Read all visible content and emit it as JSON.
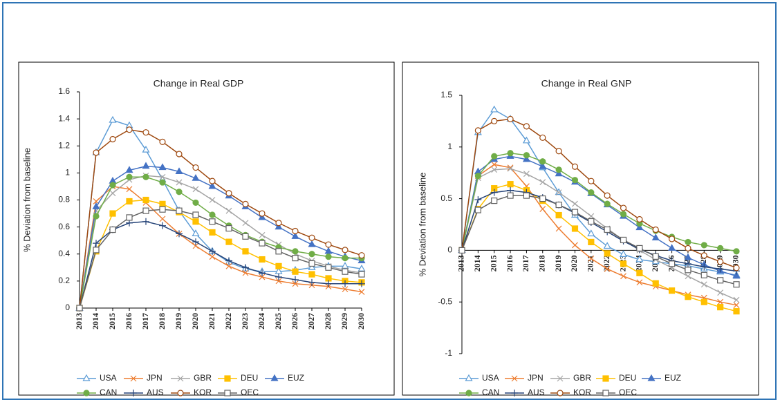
{
  "chart_data": [
    {
      "type": "line",
      "title": "Change in Real GDP",
      "y_label": "% Deviation from baseline",
      "categories": [
        "2013",
        "2014",
        "2015",
        "2016",
        "2017",
        "2018",
        "2019",
        "2020",
        "2021",
        "2022",
        "2023",
        "2024",
        "2025",
        "2026",
        "2027",
        "2028",
        "2029",
        "2030"
      ],
      "ylim": [
        0,
        1.6
      ],
      "yticks": [
        0,
        0.2,
        0.4,
        0.6,
        0.8,
        1,
        1.2,
        1.4,
        1.6
      ],
      "series": [
        {
          "name": "USA",
          "color": "#5b9bd5",
          "marker": "triangle-open",
          "values": [
            0,
            1.15,
            1.39,
            1.35,
            1.17,
            0.95,
            0.72,
            0.55,
            0.42,
            0.34,
            0.29,
            0.27,
            0.27,
            0.28,
            0.3,
            0.31,
            0.31,
            0.29
          ]
        },
        {
          "name": "JPN",
          "color": "#ed7d31",
          "marker": "x",
          "values": [
            0,
            0.79,
            0.9,
            0.88,
            0.78,
            0.66,
            0.55,
            0.46,
            0.38,
            0.31,
            0.26,
            0.23,
            0.2,
            0.18,
            0.17,
            0.16,
            0.14,
            0.12
          ]
        },
        {
          "name": "GBR",
          "color": "#a5a5a5",
          "marker": "x",
          "values": [
            0,
            0.72,
            0.85,
            0.95,
            0.98,
            0.97,
            0.93,
            0.88,
            0.8,
            0.72,
            0.63,
            0.54,
            0.47,
            0.4,
            0.35,
            0.31,
            0.28,
            0.26
          ]
        },
        {
          "name": "DEU",
          "color": "#ffc000",
          "marker": "square",
          "values": [
            0,
            0.42,
            0.7,
            0.79,
            0.8,
            0.77,
            0.71,
            0.64,
            0.56,
            0.49,
            0.42,
            0.36,
            0.31,
            0.27,
            0.25,
            0.22,
            0.2,
            0.19
          ]
        },
        {
          "name": "EUZ",
          "color": "#4472c4",
          "marker": "triangle",
          "values": [
            0,
            0.75,
            0.94,
            1.02,
            1.05,
            1.04,
            1.01,
            0.96,
            0.9,
            0.83,
            0.75,
            0.67,
            0.6,
            0.53,
            0.47,
            0.42,
            0.38,
            0.35
          ]
        },
        {
          "name": "CAN",
          "color": "#70ad47",
          "marker": "circle",
          "values": [
            0,
            0.68,
            0.91,
            0.97,
            0.97,
            0.93,
            0.86,
            0.78,
            0.69,
            0.61,
            0.54,
            0.49,
            0.45,
            0.42,
            0.4,
            0.38,
            0.37,
            0.37
          ]
        },
        {
          "name": "AUS",
          "color": "#264478",
          "marker": "plus",
          "values": [
            0,
            0.48,
            0.58,
            0.63,
            0.64,
            0.61,
            0.55,
            0.49,
            0.42,
            0.35,
            0.3,
            0.26,
            0.23,
            0.21,
            0.19,
            0.18,
            0.18,
            0.18
          ]
        },
        {
          "name": "KOR",
          "color": "#9e480e",
          "marker": "circle-open",
          "values": [
            0,
            1.15,
            1.25,
            1.32,
            1.3,
            1.23,
            1.14,
            1.04,
            0.94,
            0.85,
            0.77,
            0.7,
            0.63,
            0.57,
            0.52,
            0.47,
            0.43,
            0.39
          ]
        },
        {
          "name": "OEC",
          "color": "#636363",
          "marker": "square-open",
          "values": [
            0,
            0.43,
            0.58,
            0.67,
            0.72,
            0.73,
            0.72,
            0.69,
            0.64,
            0.59,
            0.53,
            0.48,
            0.42,
            0.37,
            0.33,
            0.3,
            0.27,
            0.25
          ]
        }
      ]
    },
    {
      "type": "line",
      "title": "Change in Real GNP",
      "y_label": "% Deviation from baseline",
      "categories": [
        "2013",
        "2014",
        "2015",
        "2016",
        "2017",
        "2018",
        "2019",
        "2020",
        "2021",
        "2022",
        "2023",
        "2024",
        "2025",
        "2026",
        "2027",
        "2028",
        "2029",
        "2030"
      ],
      "ylim": [
        -1,
        1.5
      ],
      "yticks": [
        -1,
        -0.5,
        0,
        0.5,
        1,
        1.5
      ],
      "series": [
        {
          "name": "USA",
          "color": "#5b9bd5",
          "marker": "triangle-open",
          "values": [
            0,
            1.14,
            1.36,
            1.27,
            1.06,
            0.8,
            0.56,
            0.34,
            0.16,
            0.04,
            -0.04,
            -0.09,
            -0.11,
            -0.13,
            -0.15,
            -0.18,
            -0.21,
            -0.24
          ]
        },
        {
          "name": "JPN",
          "color": "#ed7d31",
          "marker": "x",
          "values": [
            0,
            0.72,
            0.83,
            0.8,
            0.62,
            0.4,
            0.21,
            0.05,
            -0.08,
            -0.18,
            -0.25,
            -0.31,
            -0.35,
            -0.39,
            -0.43,
            -0.46,
            -0.5,
            -0.53
          ]
        },
        {
          "name": "GBR",
          "color": "#a5a5a5",
          "marker": "x",
          "values": [
            0,
            0.7,
            0.78,
            0.79,
            0.74,
            0.66,
            0.56,
            0.45,
            0.33,
            0.21,
            0.1,
            0,
            -0.09,
            -0.17,
            -0.25,
            -0.33,
            -0.41,
            -0.48
          ]
        },
        {
          "name": "DEU",
          "color": "#ffc000",
          "marker": "square",
          "values": [
            0,
            0.4,
            0.6,
            0.64,
            0.58,
            0.48,
            0.34,
            0.21,
            0.08,
            -0.03,
            -0.13,
            -0.22,
            -0.32,
            -0.39,
            -0.45,
            -0.5,
            -0.55,
            -0.59
          ]
        },
        {
          "name": "EUZ",
          "color": "#4472c4",
          "marker": "triangle",
          "values": [
            0,
            0.76,
            0.88,
            0.91,
            0.88,
            0.81,
            0.74,
            0.66,
            0.55,
            0.44,
            0.33,
            0.22,
            0.12,
            0.02,
            -0.07,
            -0.14,
            -0.2,
            -0.25
          ]
        },
        {
          "name": "CAN",
          "color": "#70ad47",
          "marker": "circle",
          "values": [
            0,
            0.72,
            0.91,
            0.94,
            0.92,
            0.86,
            0.78,
            0.68,
            0.56,
            0.45,
            0.35,
            0.26,
            0.19,
            0.13,
            0.08,
            0.05,
            0.02,
            -0.01
          ]
        },
        {
          "name": "AUS",
          "color": "#264478",
          "marker": "plus",
          "values": [
            0,
            0.49,
            0.56,
            0.58,
            0.56,
            0.51,
            0.44,
            0.36,
            0.27,
            0.18,
            0.09,
            0.01,
            -0.05,
            -0.1,
            -0.13,
            -0.16,
            -0.18,
            -0.2
          ]
        },
        {
          "name": "KOR",
          "color": "#9e480e",
          "marker": "circle-open",
          "values": [
            0,
            1.16,
            1.25,
            1.27,
            1.2,
            1.09,
            0.96,
            0.81,
            0.67,
            0.53,
            0.41,
            0.3,
            0.2,
            0.11,
            0.02,
            -0.05,
            -0.11,
            -0.17
          ]
        },
        {
          "name": "OEC",
          "color": "#636363",
          "marker": "square-open",
          "values": [
            0,
            0.39,
            0.48,
            0.53,
            0.53,
            0.5,
            0.44,
            0.37,
            0.28,
            0.2,
            0.1,
            0.02,
            -0.06,
            -0.13,
            -0.19,
            -0.24,
            -0.29,
            -0.33
          ]
        }
      ]
    }
  ]
}
